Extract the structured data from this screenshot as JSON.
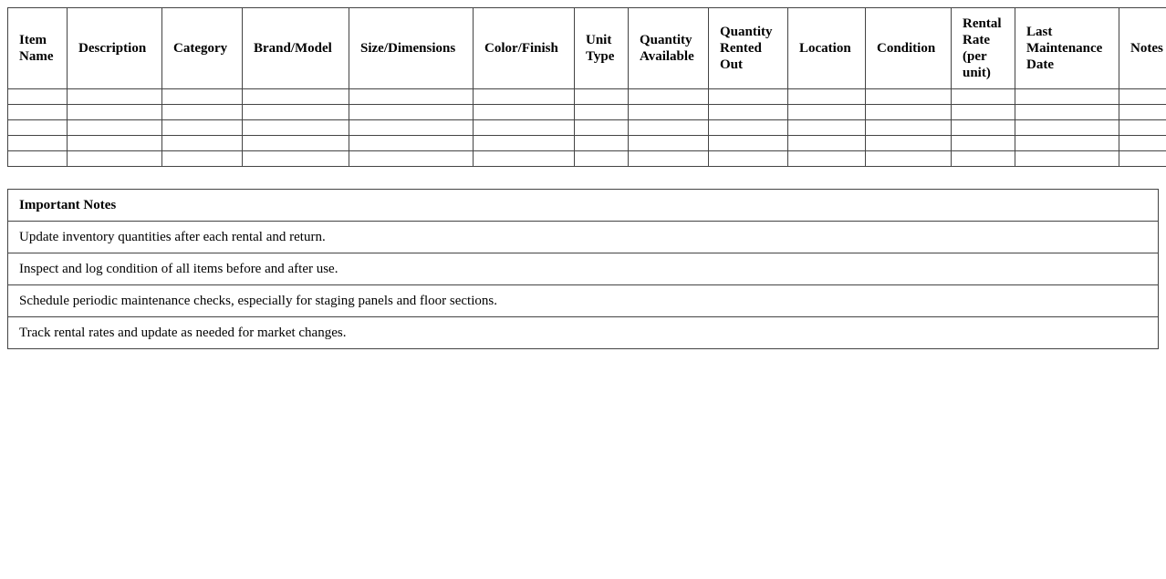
{
  "inventory_table": {
    "columns": [
      "Item Name",
      "Description",
      "Category",
      "Brand/Model",
      "Size/Dimensions",
      "Color/Finish",
      "Unit Type",
      "Quantity Available",
      "Quantity Rented Out",
      "Location",
      "Condition",
      "Rental Rate (per unit)",
      "Last Maintenance Date",
      "Notes"
    ],
    "empty_rows": 5
  },
  "notes": {
    "title": "Important Notes",
    "items": [
      "Update inventory quantities after each rental and return.",
      "Inspect and log condition of all items before and after use.",
      "Schedule periodic maintenance checks, especially for staging panels and floor sections.",
      "Track rental rates and update as needed for market changes."
    ]
  }
}
